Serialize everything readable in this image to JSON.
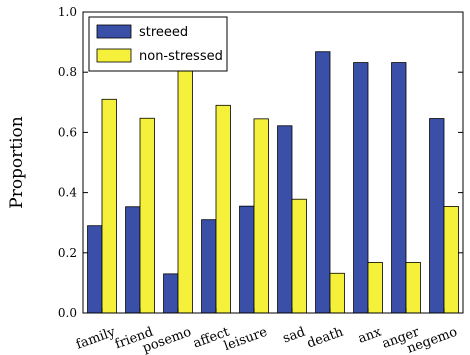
{
  "chart_data": {
    "type": "bar",
    "title": "",
    "xlabel": "",
    "ylabel": "Proportion",
    "ylim": [
      0.0,
      1.0
    ],
    "yticks": [
      "0.0",
      "0.2",
      "0.4",
      "0.6",
      "0.8",
      "1.0"
    ],
    "categories": [
      "family",
      "friend",
      "posemo",
      "affect",
      "leisure",
      "sad",
      "death",
      "anx",
      "anger",
      "negemo"
    ],
    "series": [
      {
        "name": "streeed",
        "color": "#3a4fa8",
        "values": [
          0.29,
          0.353,
          0.13,
          0.31,
          0.355,
          0.622,
          0.868,
          0.832,
          0.832,
          0.646
        ]
      },
      {
        "name": "non-stressed",
        "color": "#f5f03a",
        "values": [
          0.71,
          0.647,
          0.87,
          0.69,
          0.645,
          0.378,
          0.132,
          0.168,
          0.168,
          0.354
        ]
      }
    ],
    "legend_position": "top-left",
    "grid": false
  }
}
